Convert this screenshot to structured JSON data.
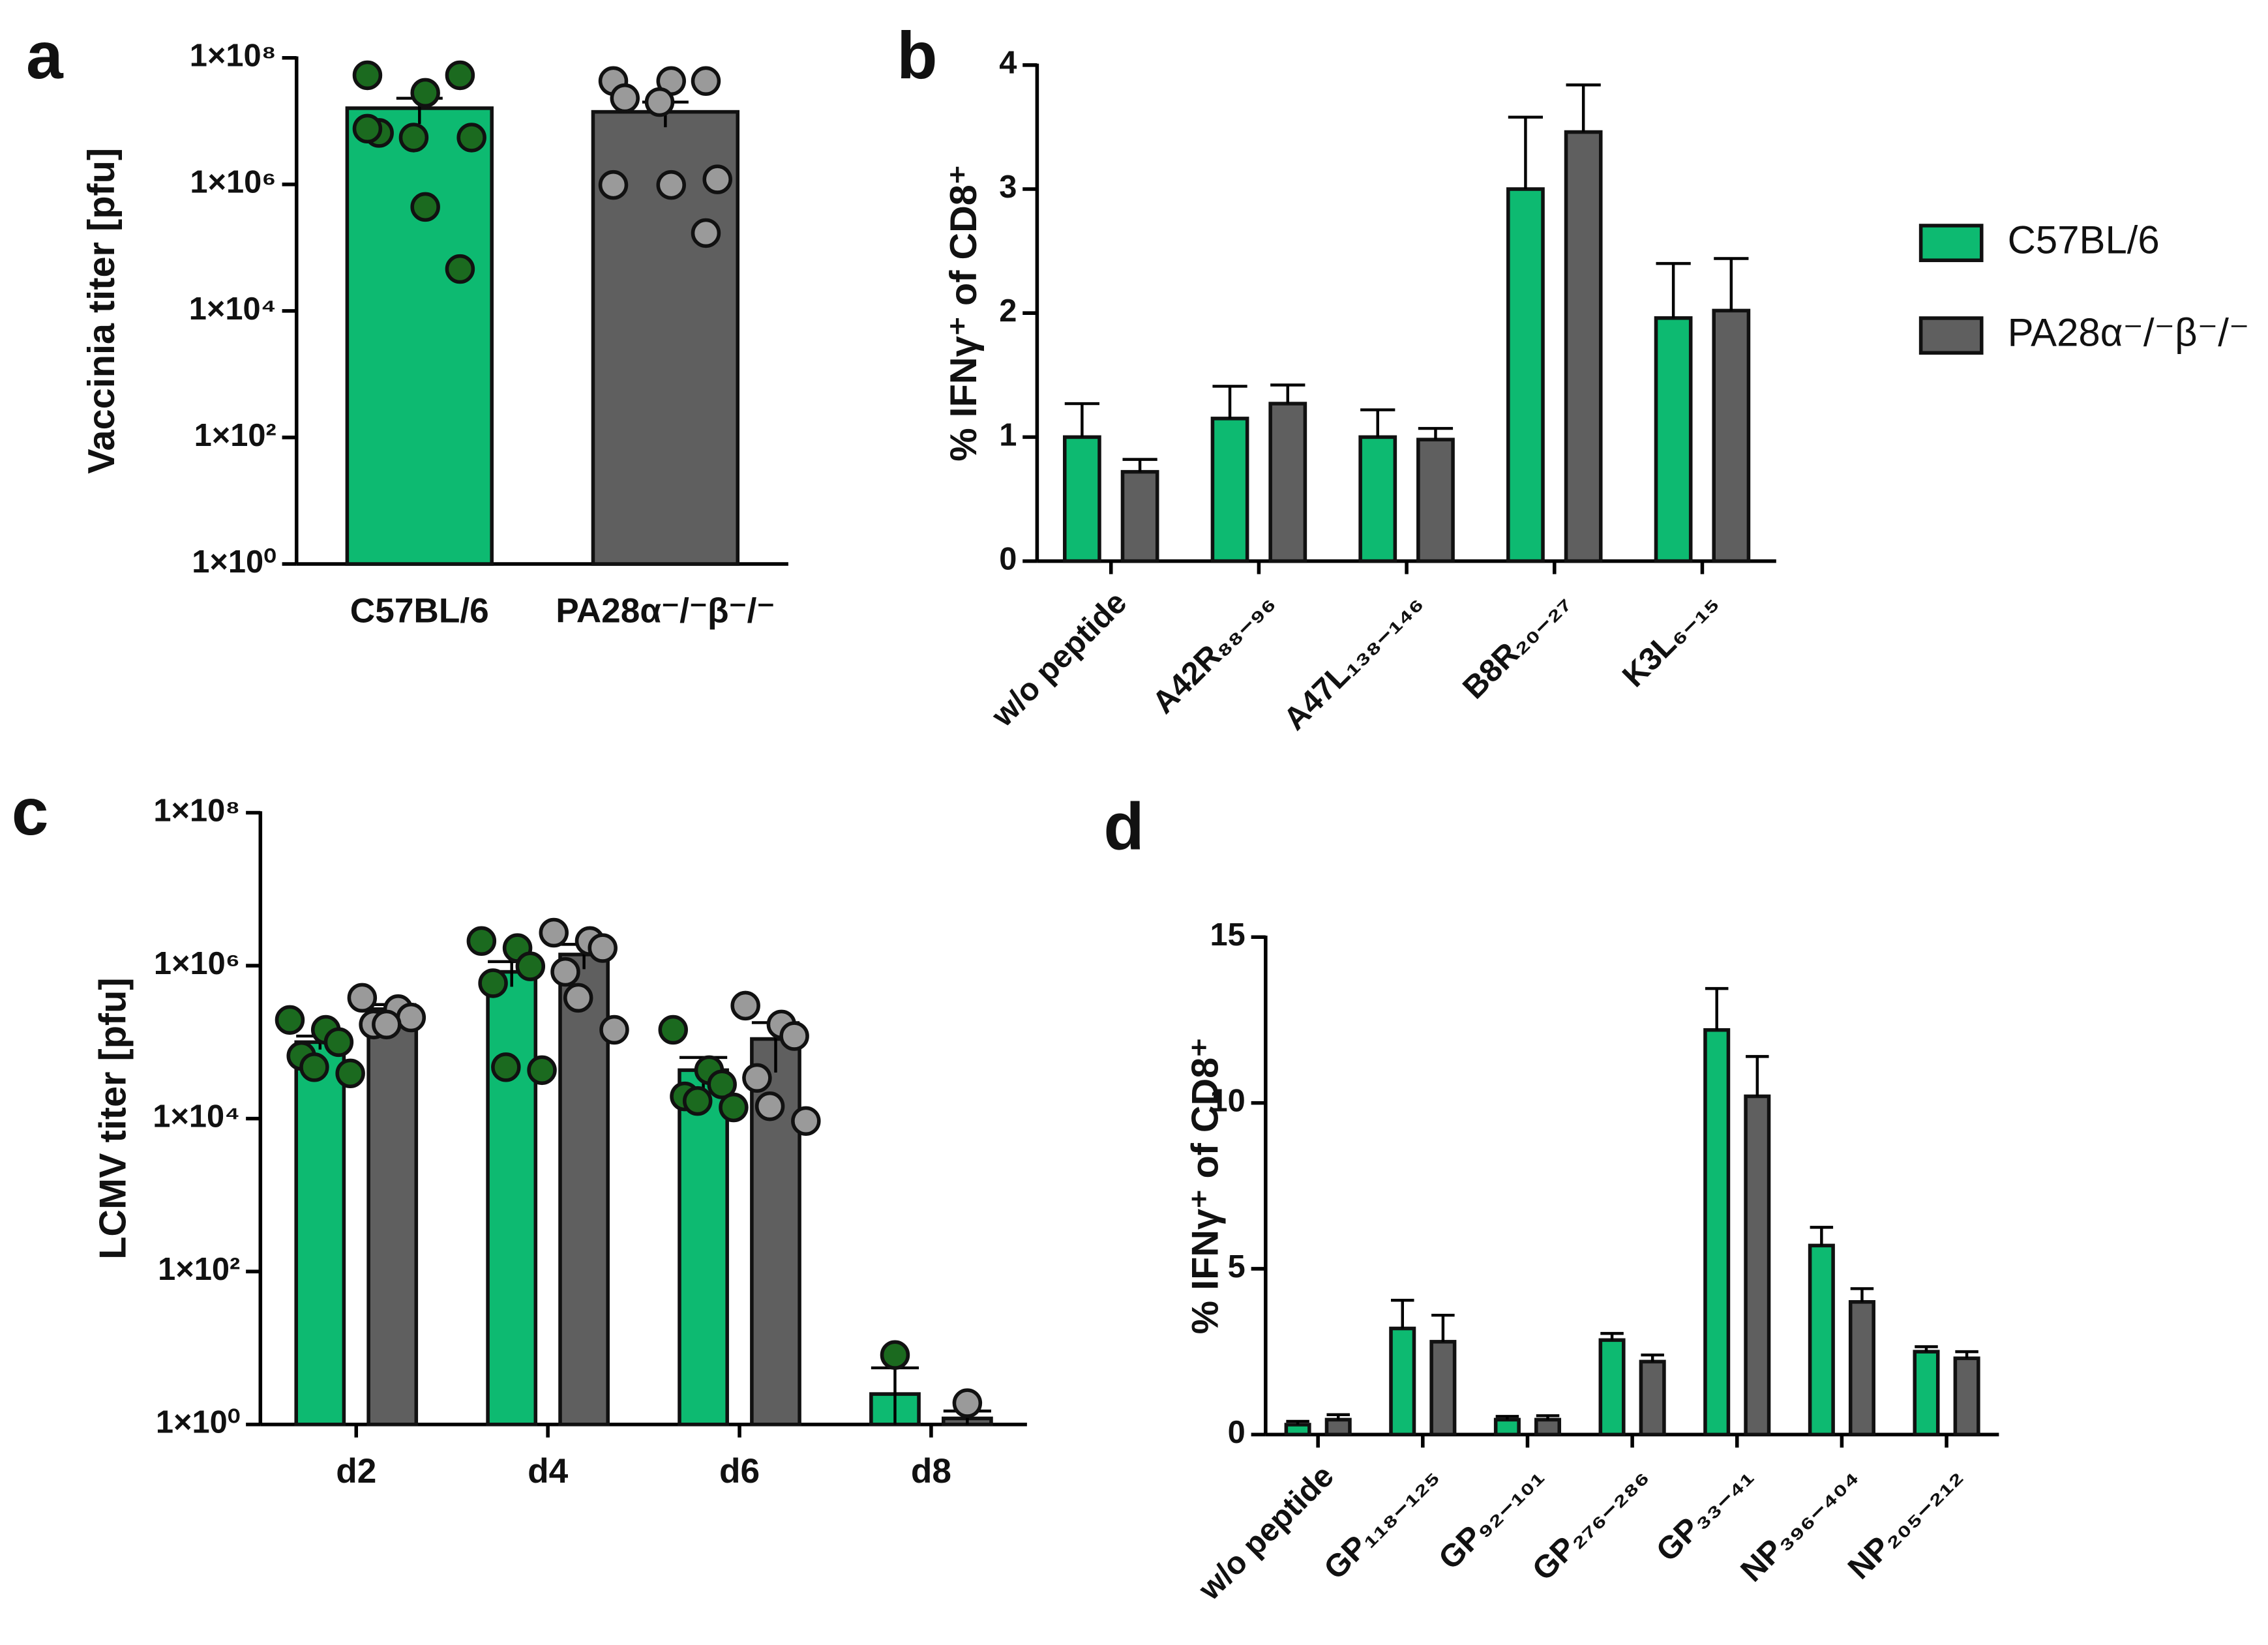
{
  "chart_data": [
    {
      "panel": "a",
      "type": "bar",
      "ylabel": "Vaccinia titer [pfu]",
      "log": true,
      "ylim": [
        1,
        100000000
      ],
      "yticks": [
        {
          "value": 1,
          "label": "1×10⁰"
        },
        {
          "value": 100,
          "label": "1×10²"
        },
        {
          "value": 10000,
          "label": "1×10⁴"
        },
        {
          "value": 1000000,
          "label": "1×10⁶"
        },
        {
          "value": 100000000,
          "label": "1×10⁸"
        }
      ],
      "categories": [
        "C57BL/6",
        "PA28α⁻/⁻β⁻/⁻"
      ],
      "values": [
        16000000,
        14000000
      ],
      "errors": [
        7000000,
        6000000
      ],
      "colors": [
        "#0dba71",
        "#5f5f5f"
      ],
      "point_colors": [
        "#1b6a1f",
        "#9a9a9a"
      ],
      "points": [
        [
          53000000,
          28000000,
          53000000,
          6500000,
          5500000,
          5500000,
          7600000,
          440000,
          46000
        ],
        [
          43000000,
          43000000,
          43000000,
          23000000,
          20000000,
          1200000,
          980000,
          980000,
          170000
        ]
      ],
      "error_bars": "both"
    },
    {
      "panel": "b",
      "type": "grouped_bar",
      "ylabel": "% IFNγ⁺ of CD8⁺",
      "log": false,
      "ylim": [
        0,
        4
      ],
      "yticks": [
        0,
        1,
        2,
        3,
        4
      ],
      "categories": [
        "w/o peptide",
        "A42R₈₈₋₉₆",
        "A47L₁₃₈₋₁₄₆",
        "B8R₂₀₋₂₇",
        "K3L₆₋₁₅"
      ],
      "series": [
        {
          "name": "C57BL/6",
          "color": "#0dba71",
          "values": [
            1.0,
            1.15,
            1.0,
            3.0,
            1.96
          ],
          "errors": [
            0.27,
            0.26,
            0.22,
            0.58,
            0.44
          ]
        },
        {
          "name": "PA28α⁻/⁻β⁻/⁻",
          "color": "#5f5f5f",
          "values": [
            0.72,
            1.27,
            0.98,
            3.46,
            2.02
          ],
          "errors": [
            0.1,
            0.15,
            0.09,
            0.38,
            0.42
          ]
        }
      ],
      "error_bars": "up"
    },
    {
      "panel": "c",
      "type": "grouped_bar",
      "ylabel": "LCMV titer [pfu]",
      "log": true,
      "ylim": [
        1,
        100000000
      ],
      "yticks": [
        {
          "value": 1,
          "label": "1×10⁰"
        },
        {
          "value": 100,
          "label": "1×10²"
        },
        {
          "value": 10000,
          "label": "1×10⁴"
        },
        {
          "value": 1000000,
          "label": "1×10⁶"
        },
        {
          "value": 100000000,
          "label": "1×10⁸"
        }
      ],
      "categories": [
        "d2",
        "d4",
        "d6",
        "d8"
      ],
      "series": [
        {
          "color": "#0dba71",
          "point_color": "#1b6a1f",
          "values": [
            100000,
            830000,
            43000,
            2.5
          ],
          "errors": [
            20000,
            300000,
            20000,
            3
          ],
          "points": [
            [
              195000,
              145000,
              100000,
              66000,
              47000,
              39000
            ],
            [
              2100000,
              1700000,
              980000,
              590000,
              47000,
              43000
            ],
            [
              145000,
              43000,
              28000,
              19500,
              17000,
              14000
            ],
            [
              8.1
            ]
          ]
        },
        {
          "color": "#5f5f5f",
          "point_color": "#9a9a9a",
          "values": [
            270000,
            1400000,
            110000,
            1.2
          ],
          "errors": [
            40000,
            500000,
            70000,
            0.3
          ],
          "points": [
            [
              380000,
              270000,
              210000,
              170000,
              170000
            ],
            [
              2700000,
              2100000,
              1700000,
              830000,
              380000,
              145000
            ],
            [
              300000,
              170000,
              120000,
              34000,
              14500,
              9300
            ],
            [
              1.9
            ]
          ]
        }
      ],
      "error_bars": "both"
    },
    {
      "panel": "d",
      "type": "grouped_bar",
      "ylabel": "% IFNγ⁺ of CD8⁺",
      "log": false,
      "ylim": [
        0,
        15
      ],
      "yticks": [
        0,
        5,
        10,
        15
      ],
      "categories": [
        "w/o peptide",
        "GP₁₁₈₋₁₂₅",
        "GP₉₂₋₁₀₁",
        "GP₂₇₆₋₂₈₆",
        "GP₃₃₋₄₁",
        "NP₃₉₆₋₄₀₄",
        "NP₂₀₅₋₂₁₂"
      ],
      "series": [
        {
          "color": "#0dba71",
          "values": [
            0.3,
            3.2,
            0.45,
            2.85,
            12.2,
            5.7,
            2.5
          ],
          "errors": [
            0.1,
            0.85,
            0.1,
            0.2,
            1.25,
            0.55,
            0.15
          ]
        },
        {
          "color": "#5f5f5f",
          "values": [
            0.45,
            2.8,
            0.45,
            2.2,
            10.2,
            4.0,
            2.3
          ],
          "errors": [
            0.15,
            0.8,
            0.12,
            0.2,
            1.2,
            0.4,
            0.2
          ]
        }
      ],
      "error_bars": "up"
    }
  ]
}
